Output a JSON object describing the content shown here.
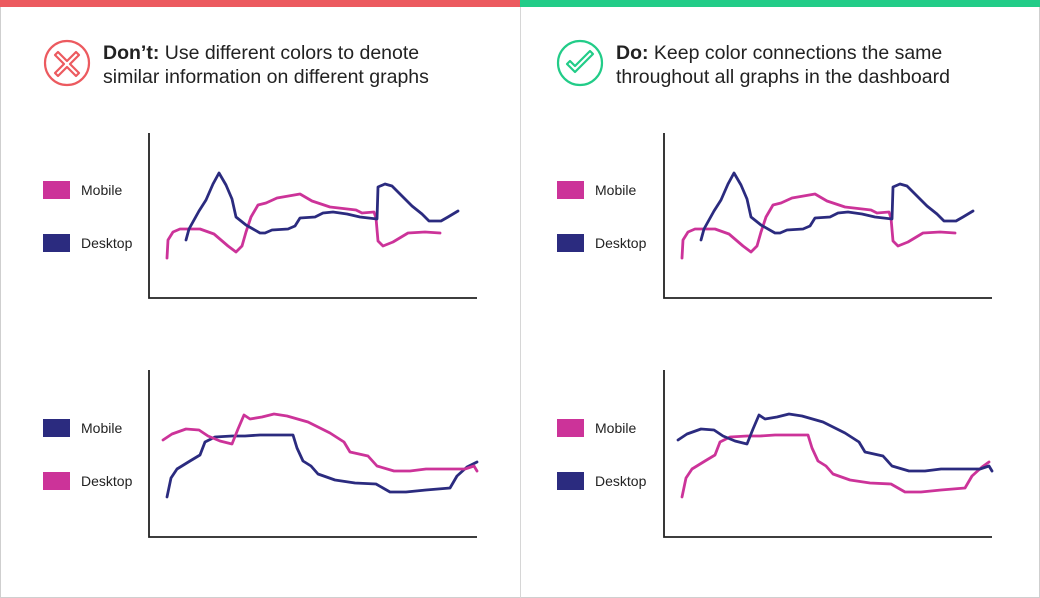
{
  "colors": {
    "mobile_magenta": "#cc3399",
    "desktop_navy": "#2b2b7f",
    "dont_red": "#ec5a5f",
    "do_green": "#22cc88",
    "axis": "#222222"
  },
  "panels": [
    {
      "id": "dont",
      "bar_color": "#ec5a5f",
      "icon": "x-circle-icon",
      "heading_bold": "Don’t:",
      "heading_line1": "Use different colors to denote",
      "heading_line2": "similar information on different graphs",
      "charts": [
        {
          "legend": [
            {
              "label": "Mobile",
              "color": "#cc3399"
            },
            {
              "label": "Desktop",
              "color": "#2b2b7f"
            }
          ],
          "series": [
            {
              "name": "Mobile",
              "color": "#cc3399"
            },
            {
              "name": "Desktop",
              "color": "#2b2b7f"
            }
          ]
        },
        {
          "legend": [
            {
              "label": "Mobile",
              "color": "#2b2b7f"
            },
            {
              "label": "Desktop",
              "color": "#cc3399"
            }
          ],
          "series": [
            {
              "name": "Mobile",
              "color": "#2b2b7f"
            },
            {
              "name": "Desktop",
              "color": "#cc3399"
            }
          ]
        }
      ]
    },
    {
      "id": "do",
      "bar_color": "#22cc88",
      "icon": "check-circle-icon",
      "heading_bold": "Do:",
      "heading_line1": "Keep color connections the same",
      "heading_line2": "throughout all graphs in the dashboard",
      "charts": [
        {
          "legend": [
            {
              "label": "Mobile",
              "color": "#cc3399"
            },
            {
              "label": "Desktop",
              "color": "#2b2b7f"
            }
          ],
          "series": [
            {
              "name": "Mobile",
              "color": "#cc3399"
            },
            {
              "name": "Desktop",
              "color": "#2b2b7f"
            }
          ]
        },
        {
          "legend": [
            {
              "label": "Mobile",
              "color": "#cc3399"
            },
            {
              "label": "Desktop",
              "color": "#2b2b7f"
            }
          ],
          "series": [
            {
              "name": "Mobile",
              "color": "#cc3399"
            },
            {
              "name": "Desktop",
              "color": "#2b2b7f"
            }
          ]
        }
      ]
    }
  ]
}
